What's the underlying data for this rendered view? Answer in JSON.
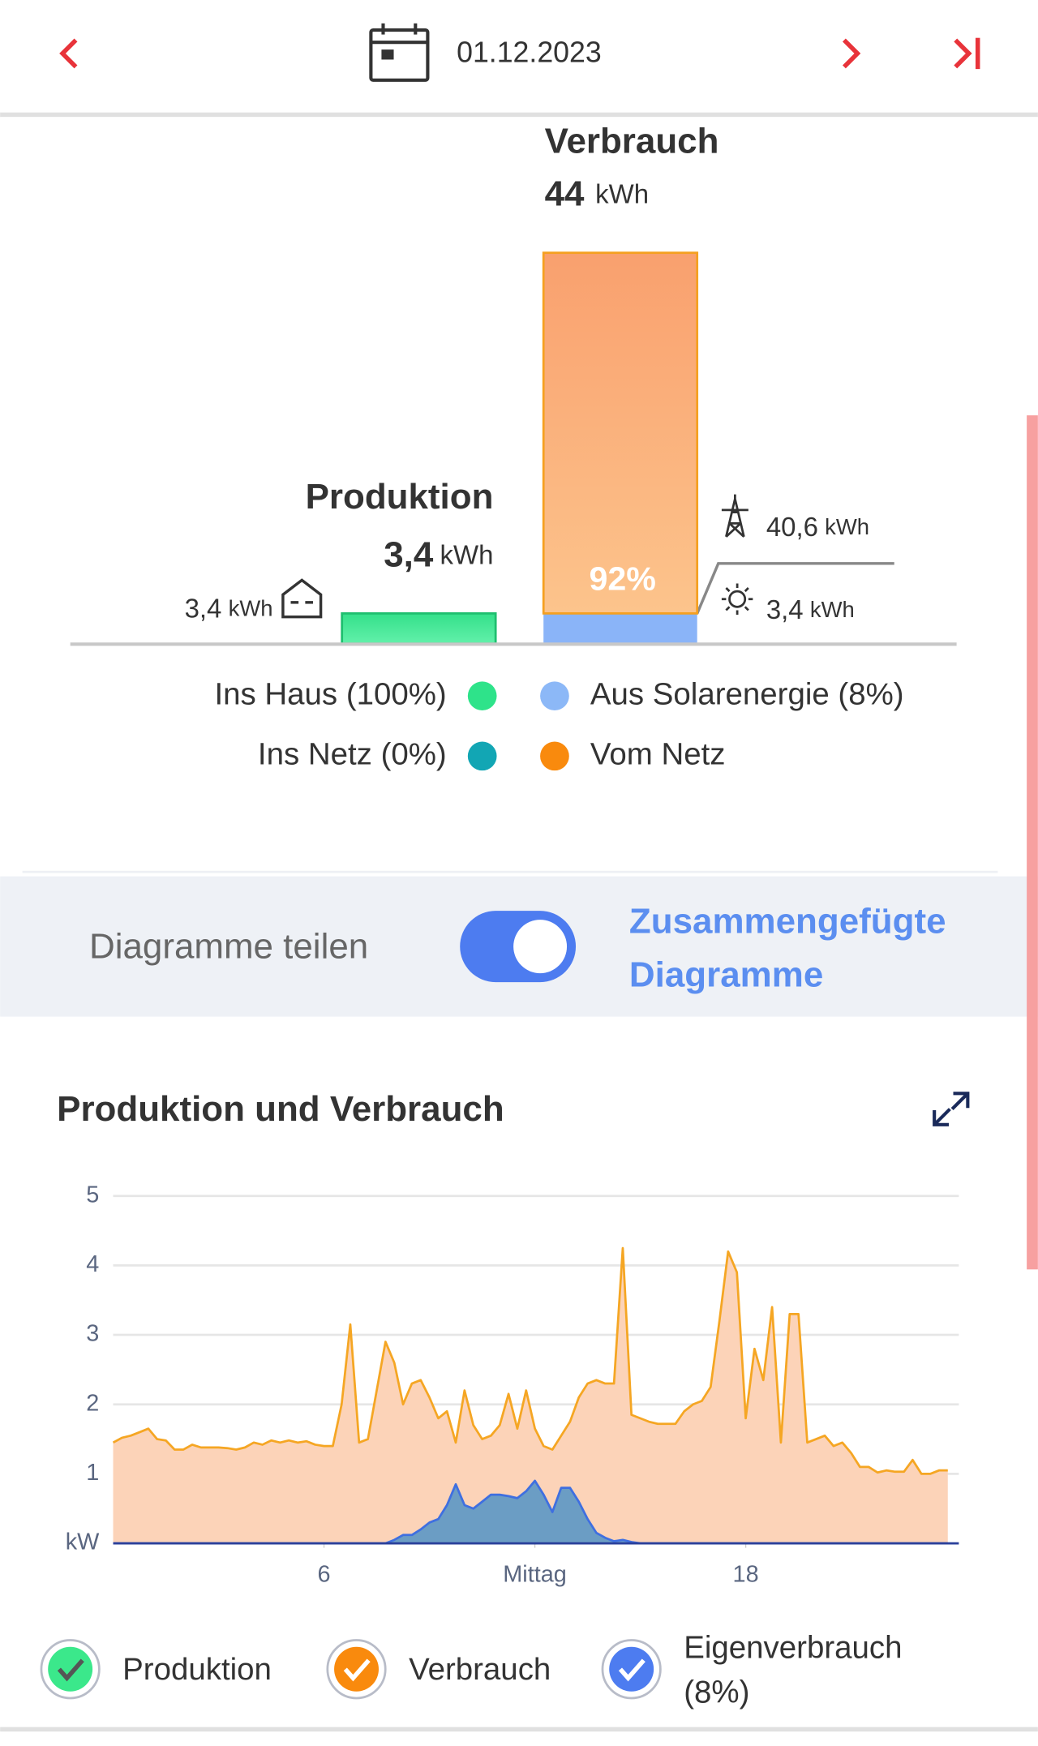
{
  "header": {
    "date": "01.12.2023"
  },
  "summary": {
    "consumption": {
      "title": "Verbrauch",
      "value": 44,
      "unit": "kWh",
      "grid_share": "92%",
      "from_grid": {
        "value": 40.6,
        "label": "40,6",
        "unit": "kWh"
      },
      "from_solar": {
        "value": 3.4,
        "label": "3,4",
        "unit": "kWh"
      }
    },
    "production": {
      "title": "Produktion",
      "value": 3.4,
      "value_label": "3,4",
      "unit": "kWh",
      "to_house": {
        "value": 3.4,
        "label": "3,4",
        "unit": "kWh"
      }
    },
    "legend": [
      {
        "label": "Ins Haus (100%)",
        "color": "#2ee38a"
      },
      {
        "label": "Aus Solarenergie (8%)",
        "color": "#8cb8f7"
      },
      {
        "label": "Ins Netz (0%)",
        "color": "#12a6b4"
      },
      {
        "label": "Vom Netz",
        "color": "#f98a0d"
      }
    ]
  },
  "toggle": {
    "label": "Diagramme teilen",
    "option": "Zusammengefügte Diagramme",
    "on": true
  },
  "chart_data": {
    "type": "area",
    "title": "Produktion und Verbrauch",
    "x": [
      0,
      0.25,
      0.5,
      0.75,
      1,
      1.25,
      1.5,
      1.75,
      2,
      2.25,
      2.5,
      2.75,
      3,
      3.25,
      3.5,
      3.75,
      4,
      4.25,
      4.5,
      4.75,
      5,
      5.25,
      5.5,
      5.75,
      6,
      6.25,
      6.5,
      6.75,
      7,
      7.25,
      7.5,
      7.75,
      8,
      8.25,
      8.5,
      8.75,
      9,
      9.25,
      9.5,
      9.75,
      10,
      10.25,
      10.5,
      10.75,
      11,
      11.25,
      11.5,
      11.75,
      12,
      12.25,
      12.5,
      12.75,
      13,
      13.25,
      13.5,
      13.75,
      14,
      14.25,
      14.5,
      14.75,
      15,
      15.25,
      15.5,
      15.75,
      16,
      16.25,
      16.5,
      16.75,
      17,
      17.25,
      17.5,
      17.75,
      18,
      18.25,
      18.5,
      18.75,
      19,
      19.25,
      19.5,
      19.75,
      20,
      20.25,
      20.5,
      20.75,
      21,
      21.25,
      21.5,
      21.75,
      22,
      22.25,
      22.5,
      22.75,
      23,
      23.25,
      23.5,
      23.75
    ],
    "series": [
      {
        "name": "Verbrauch",
        "color": "#f5a623",
        "fill": "#fcd3b8",
        "values": [
          1.45,
          1.52,
          1.55,
          1.6,
          1.65,
          1.5,
          1.48,
          1.35,
          1.35,
          1.42,
          1.38,
          1.38,
          1.38,
          1.37,
          1.35,
          1.38,
          1.45,
          1.42,
          1.48,
          1.45,
          1.48,
          1.45,
          1.47,
          1.42,
          1.4,
          1.4,
          2.0,
          3.15,
          1.45,
          1.5,
          2.2,
          2.9,
          2.6,
          2.0,
          2.3,
          2.35,
          2.1,
          1.8,
          1.9,
          1.45,
          2.2,
          1.7,
          1.5,
          1.55,
          1.7,
          2.15,
          1.65,
          2.2,
          1.65,
          1.4,
          1.35,
          1.55,
          1.75,
          2.1,
          2.3,
          2.35,
          2.3,
          2.3,
          4.25,
          1.85,
          1.8,
          1.75,
          1.72,
          1.72,
          1.72,
          1.9,
          2.0,
          2.05,
          2.25,
          3.2,
          4.2,
          3.9,
          1.8,
          2.8,
          2.35,
          3.4,
          1.45,
          3.3,
          3.3,
          1.45,
          1.5,
          1.55,
          1.4,
          1.45,
          1.3,
          1.1,
          1.1,
          1.02,
          1.05,
          1.03,
          1.03,
          1.2,
          1.0,
          1.0,
          1.05,
          1.05
        ]
      },
      {
        "name": "Eigenverbrauch (8%)",
        "color": "#3f6fe0",
        "fill": "#6b9dc4",
        "values": [
          0,
          0,
          0,
          0,
          0,
          0,
          0,
          0,
          0,
          0,
          0,
          0,
          0,
          0,
          0,
          0,
          0,
          0,
          0,
          0,
          0,
          0,
          0,
          0,
          0,
          0,
          0,
          0,
          0,
          0,
          0,
          0,
          0.05,
          0.12,
          0.12,
          0.2,
          0.3,
          0.35,
          0.55,
          0.85,
          0.55,
          0.5,
          0.6,
          0.7,
          0.7,
          0.68,
          0.65,
          0.75,
          0.9,
          0.7,
          0.45,
          0.8,
          0.8,
          0.6,
          0.35,
          0.15,
          0.08,
          0.03,
          0.05,
          0.02,
          0,
          0,
          0,
          0,
          0,
          0,
          0,
          0,
          0,
          0,
          0,
          0,
          0,
          0,
          0,
          0,
          0,
          0,
          0,
          0,
          0,
          0,
          0,
          0,
          0,
          0,
          0,
          0,
          0,
          0,
          0,
          0,
          0,
          0,
          0,
          0
        ]
      }
    ],
    "legend_only": [
      {
        "name": "Produktion",
        "color": "#3be88b"
      }
    ],
    "xlim": [
      0,
      24
    ],
    "xticks": [
      6,
      {
        "value": 12,
        "label": "Mittag"
      },
      18
    ],
    "ylim": [
      0,
      5
    ],
    "yticks": [
      {
        "value": 0,
        "label": "kW"
      },
      1,
      2,
      3,
      4,
      5
    ],
    "grid": true
  }
}
